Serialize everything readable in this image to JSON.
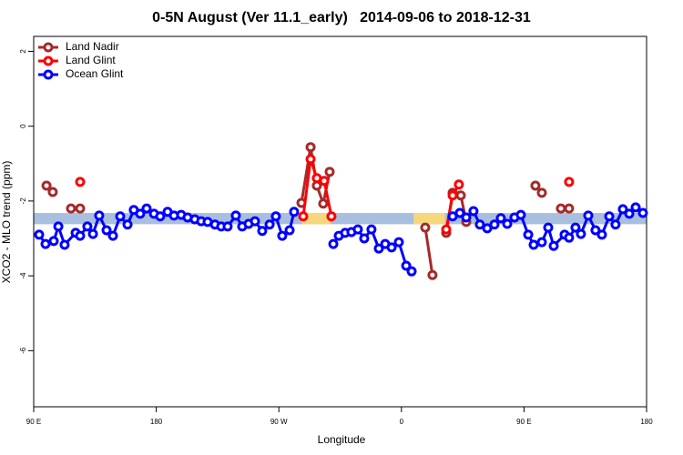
{
  "chart_data": {
    "type": "line",
    "title": "0-5N August (Ver 11.1_early)   2014-09-06 to 2018-12-31",
    "x_label": "Longitude",
    "y_label": "XCO2 - MLO trend (ppm)",
    "xlim": [
      90,
      540
    ],
    "xticks": [
      {
        "value": 90,
        "label": "90 E"
      },
      180,
      {
        "value": 270,
        "label": "90 W"
      },
      {
        "value": 360,
        "label": "0"
      },
      {
        "value": 450,
        "label": "90 E"
      },
      {
        "value": 540,
        "label": "180"
      }
    ],
    "ylim": [
      -7.5,
      2.4
    ],
    "yticks": [
      2,
      0,
      -2,
      -4,
      -6
    ],
    "legend": "topleft",
    "band": {
      "ylim": [
        -2.62,
        -2.32
      ],
      "color": "#a9bfdf",
      "highlights": [
        [
          287,
          308
        ],
        [
          369,
          392
        ]
      ],
      "highlight_color": "#f7d77c"
    },
    "series": [
      {
        "name": "Land Nadir",
        "color": "#a52a2a",
        "x": [
          99.4,
          104.0,
          null,
          117.4,
          124.1,
          null,
          286.6,
          293.3,
          297.9,
          302.6,
          307.3,
          null,
          377.5,
          382.8,
          null,
          392.9,
          397.6,
          403.6,
          407.6,
          null,
          458.4,
          463.1,
          null,
          477.1,
          483.1
        ],
        "values": [
          -1.59,
          -1.76,
          null,
          -2.2,
          -2.2,
          null,
          -2.05,
          -0.56,
          -1.59,
          -2.07,
          -1.22,
          null,
          -2.71,
          -3.98,
          null,
          -2.85,
          -1.78,
          -1.85,
          -2.56,
          null,
          -1.59,
          -1.78,
          null,
          -2.2,
          -2.2
        ]
      },
      {
        "name": "Land Glint",
        "color": "#ff0000",
        "x": [
          124.1,
          null,
          287.9,
          293.3,
          297.9,
          303.3,
          308.6,
          null,
          392.9,
          397.6,
          402.2,
          null,
          483.1
        ],
        "values": [
          -1.49,
          null,
          -2.41,
          -0.88,
          -1.39,
          -1.46,
          -2.41,
          null,
          -2.76,
          -1.85,
          -1.56,
          null,
          -1.49
        ]
      },
      {
        "name": "Ocean Glint",
        "color": "#0000ff",
        "x": [
          94.0,
          98.7,
          104.7,
          108.1,
          112.7,
          120.8,
          124.1,
          129.4,
          133.5,
          138.1,
          143.5,
          148.2,
          153.5,
          158.9,
          163.5,
          168.2,
          172.9,
          178.3,
          182.9,
          188.3,
          193.0,
          198.3,
          203.0,
          208.3,
          213.0,
          217.7,
          223.1,
          227.7,
          232.4,
          238.4,
          243.1,
          247.8,
          252.5,
          257.8,
          263.2,
          267.8,
          272.5,
          277.9,
          281.2,
          null,
          310.0,
          314.0,
          318.7,
          323.3,
          328.0,
          332.7,
          338.0,
          343.4,
          348.1,
          352.8,
          358.1,
          363.5,
          367.5,
          null,
          397.6,
          402.9,
          407.6,
          412.9,
          417.6,
          423.0,
          428.3,
          433.0,
          437.7,
          443.0,
          447.7,
          453.1,
          457.1,
          463.1,
          467.8,
          471.8,
          479.8,
          483.1,
          487.8,
          491.8,
          497.2,
          502.5,
          507.2,
          512.6,
          517.2,
          522.6,
          527.3,
          532.0,
          537.3
        ],
        "values": [
          -2.9,
          -3.15,
          -3.07,
          -2.68,
          -3.17,
          -2.85,
          -2.93,
          -2.68,
          -2.88,
          -2.39,
          -2.78,
          -2.93,
          -2.41,
          -2.63,
          -2.24,
          -2.34,
          -2.2,
          -2.34,
          -2.41,
          -2.29,
          -2.39,
          -2.37,
          -2.44,
          -2.49,
          -2.54,
          -2.56,
          -2.63,
          -2.68,
          -2.68,
          -2.39,
          -2.68,
          -2.61,
          -2.54,
          -2.8,
          -2.63,
          -2.41,
          -2.93,
          -2.78,
          -2.29,
          null,
          -3.15,
          -2.93,
          -2.85,
          -2.83,
          -2.76,
          -3.0,
          -2.76,
          -3.27,
          -3.15,
          -3.24,
          -3.1,
          -3.73,
          -3.88,
          null,
          -2.41,
          -2.32,
          -2.44,
          -2.27,
          -2.63,
          -2.73,
          -2.63,
          -2.46,
          -2.61,
          -2.44,
          -2.37,
          -2.9,
          -3.17,
          -3.1,
          -2.71,
          -3.2,
          -2.9,
          -2.98,
          -2.71,
          -2.88,
          -2.39,
          -2.78,
          -2.9,
          -2.41,
          -2.63,
          -2.22,
          -2.34,
          -2.17,
          -2.32
        ]
      }
    ]
  }
}
